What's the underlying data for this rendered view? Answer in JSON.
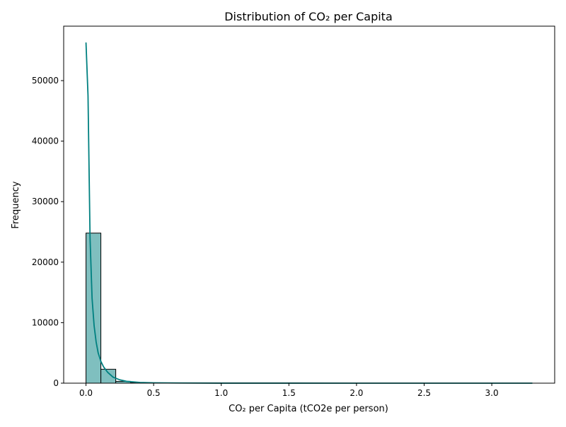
{
  "chart_data": {
    "type": "bar",
    "title": "Distribution of CO₂ per Capita",
    "xlabel": "CO₂ per Capita (tCO2e per person)",
    "ylabel": "Frequency",
    "xlim": [
      -0.165,
      3.465
    ],
    "ylim": [
      0,
      59000
    ],
    "xticks": [
      {
        "value": 0.0,
        "label": "0.0"
      },
      {
        "value": 0.5,
        "label": "0.5"
      },
      {
        "value": 1.0,
        "label": "1.0"
      },
      {
        "value": 1.5,
        "label": "1.5"
      },
      {
        "value": 2.0,
        "label": "2.0"
      },
      {
        "value": 2.5,
        "label": "2.5"
      },
      {
        "value": 3.0,
        "label": "3.0"
      }
    ],
    "yticks": [
      {
        "value": 0,
        "label": "0"
      },
      {
        "value": 10000,
        "label": "10000"
      },
      {
        "value": 20000,
        "label": "20000"
      },
      {
        "value": 30000,
        "label": "30000"
      },
      {
        "value": 40000,
        "label": "40000"
      },
      {
        "value": 50000,
        "label": "50000"
      }
    ],
    "histogram": {
      "bin_edges": [
        0.0,
        0.11,
        0.22,
        0.33,
        0.44,
        0.55,
        0.66,
        0.77,
        0.88,
        0.99,
        1.1,
        1.21,
        1.32,
        1.43,
        1.54,
        1.65,
        1.76,
        1.87,
        1.98,
        2.09,
        2.2,
        2.31,
        2.42,
        2.53,
        2.64,
        2.75,
        2.86,
        2.97,
        3.08,
        3.19,
        3.3
      ],
      "counts": [
        24800,
        2300,
        300,
        60,
        30,
        20,
        10,
        8,
        6,
        5,
        4,
        3,
        3,
        2,
        2,
        2,
        1,
        1,
        1,
        1,
        1,
        1,
        1,
        1,
        1,
        1,
        1,
        1,
        1,
        1
      ]
    },
    "kde": {
      "x": [
        0.0,
        0.015,
        0.03,
        0.045,
        0.06,
        0.075,
        0.09,
        0.11,
        0.13,
        0.16,
        0.2,
        0.25,
        0.3,
        0.4,
        0.5,
        0.7,
        1.0,
        1.5,
        2.0,
        2.5,
        3.0,
        3.3
      ],
      "y": [
        56300,
        47500,
        24000,
        14000,
        9500,
        6800,
        5000,
        3600,
        2700,
        1800,
        1000,
        550,
        300,
        120,
        60,
        25,
        10,
        5,
        3,
        2,
        1,
        1
      ]
    },
    "colors": {
      "bar_fill": "#7fbfbf",
      "bar_edge": "#000000",
      "kde_line": "#008080"
    }
  }
}
